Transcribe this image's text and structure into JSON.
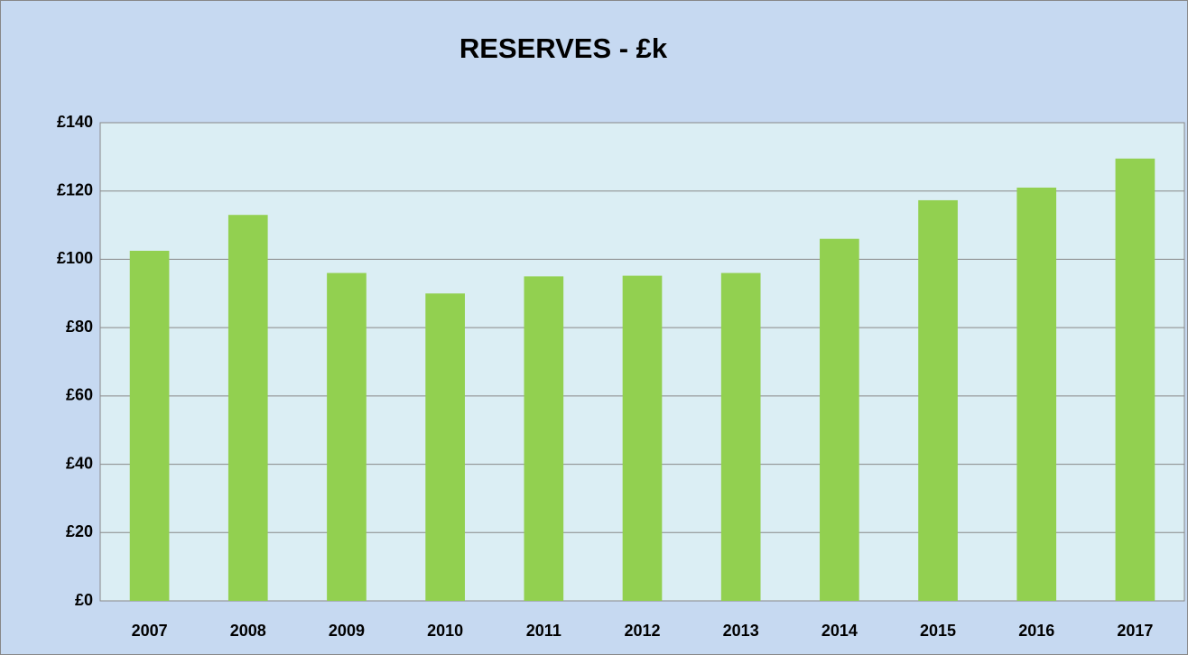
{
  "chart_data": {
    "type": "bar",
    "title": "RESERVES - £k",
    "categories": [
      "2007",
      "2008",
      "2009",
      "2010",
      "2011",
      "2012",
      "2013",
      "2014",
      "2015",
      "2016",
      "2017"
    ],
    "values": [
      102.5,
      113,
      96,
      90,
      95,
      95.2,
      96,
      106,
      117.3,
      121,
      129.5
    ],
    "color": "#92d050",
    "ylim": [
      0,
      140
    ],
    "yticks": [
      {
        "value": 0,
        "label": "£0"
      },
      {
        "value": 20,
        "label": "£20"
      },
      {
        "value": 40,
        "label": "£40"
      },
      {
        "value": 60,
        "label": "£60"
      },
      {
        "value": 80,
        "label": "£80"
      },
      {
        "value": 100,
        "label": "£100"
      },
      {
        "value": 120,
        "label": "£120"
      },
      {
        "value": 140,
        "label": "£140"
      }
    ],
    "grid": true
  }
}
